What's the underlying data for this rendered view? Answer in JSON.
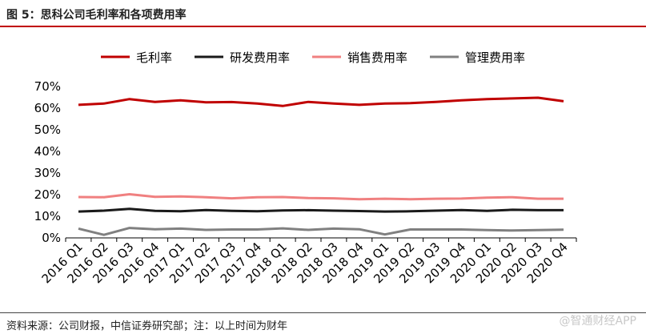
{
  "figure_title": "图 5：思科公司毛利率和各项费用率",
  "source_note": "资料来源：公司财报，中信证券研究部；注：以上时间为财年",
  "watermark": "@智通财经APP",
  "chart_data": {
    "type": "line",
    "title": "",
    "xlabel": "",
    "ylabel": "",
    "ylim": [
      0,
      70
    ],
    "yticks": [
      "0%",
      "10%",
      "20%",
      "30%",
      "40%",
      "50%",
      "60%",
      "70%"
    ],
    "legend_position": "top",
    "grid": false,
    "categories": [
      "2016 Q1",
      "2016 Q2",
      "2016 Q3",
      "2016 Q4",
      "2017 Q1",
      "2017 Q2",
      "2017 Q3",
      "2017 Q4",
      "2018 Q1",
      "2018 Q2",
      "2018 Q3",
      "2018 Q4",
      "2019 Q1",
      "2019 Q2",
      "2019 Q3",
      "2019 Q4",
      "2020 Q1",
      "2020 Q2",
      "2020 Q3",
      "2020 Q4"
    ],
    "series": [
      {
        "name": "毛利率",
        "color": "#c00000",
        "values": [
          61.5,
          62.1,
          64.2,
          62.9,
          63.6,
          62.7,
          62.8,
          62.1,
          61.0,
          62.9,
          62.1,
          61.5,
          62.1,
          62.3,
          62.9,
          63.6,
          64.2,
          64.5,
          64.8,
          63.2
        ]
      },
      {
        "name": "研发费用率",
        "color": "#1a1a1a",
        "values": [
          12.2,
          12.6,
          13.4,
          12.5,
          12.3,
          12.9,
          12.5,
          12.3,
          12.7,
          12.8,
          12.6,
          12.4,
          12.2,
          12.3,
          12.6,
          12.9,
          12.5,
          13.0,
          12.8,
          12.8
        ]
      },
      {
        "name": "销售费用率",
        "color": "#f08080",
        "values": [
          18.9,
          18.8,
          20.2,
          19.0,
          19.2,
          18.8,
          18.3,
          18.8,
          18.9,
          18.4,
          18.3,
          17.9,
          18.1,
          17.9,
          18.1,
          18.2,
          18.6,
          18.8,
          18.1,
          18.1
        ]
      },
      {
        "name": "管理费用率",
        "color": "#808080",
        "values": [
          4.3,
          1.4,
          4.6,
          4.0,
          4.3,
          3.7,
          3.9,
          3.9,
          4.4,
          3.7,
          4.3,
          4.0,
          1.6,
          3.9,
          3.9,
          3.9,
          3.6,
          3.4,
          3.6,
          3.8
        ]
      }
    ]
  }
}
